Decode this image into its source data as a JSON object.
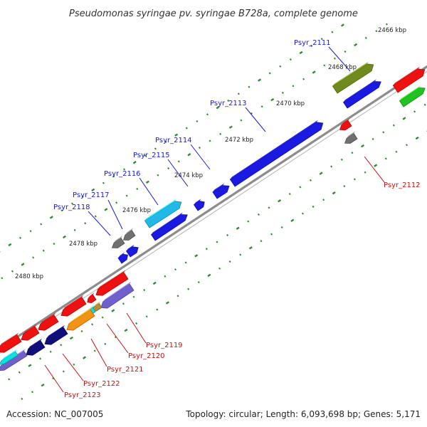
{
  "title": "Pseudomonas syringae pv. syringae B728a, complete genome",
  "footer": {
    "accession": "Accession: NC_007005",
    "summary": "Topology: circular; Length: 6,093,698 bp; Genes: 5,171"
  },
  "colors": {
    "backbone": "#8c8c8c",
    "tick_dots": "#2e8b2e",
    "forward_label": "#1a1adb",
    "reverse_label": "#cc1111",
    "red": "#ee1111",
    "blue": "#1a1ae0",
    "lightblue": "#22b8ea",
    "olive": "#6f8a1f",
    "navy": "#0f0f7a",
    "purple": "#7060cc",
    "orange": "#f39214",
    "cyan": "#11e0e0",
    "grey": "#707070",
    "green": "#22c222",
    "tan": "#b09040"
  },
  "kbp_ticks": [
    "2466 kbp",
    "2468 kbp",
    "2470 kbp",
    "2472 kbp",
    "2474 kbp",
    "2476 kbp",
    "2478 kbp",
    "2480 kbp"
  ],
  "gene_labels": {
    "forward": [
      "Psyr_2111",
      "Psyr_2113",
      "Psyr_2114",
      "Psyr_2115",
      "Psyr_2116",
      "Psyr_2117",
      "Psyr_2118"
    ],
    "reverse": [
      "Psyr_2112",
      "Psyr_2119",
      "Psyr_2120",
      "Psyr_2121",
      "Psyr_2122",
      "Psyr_2123"
    ]
  }
}
